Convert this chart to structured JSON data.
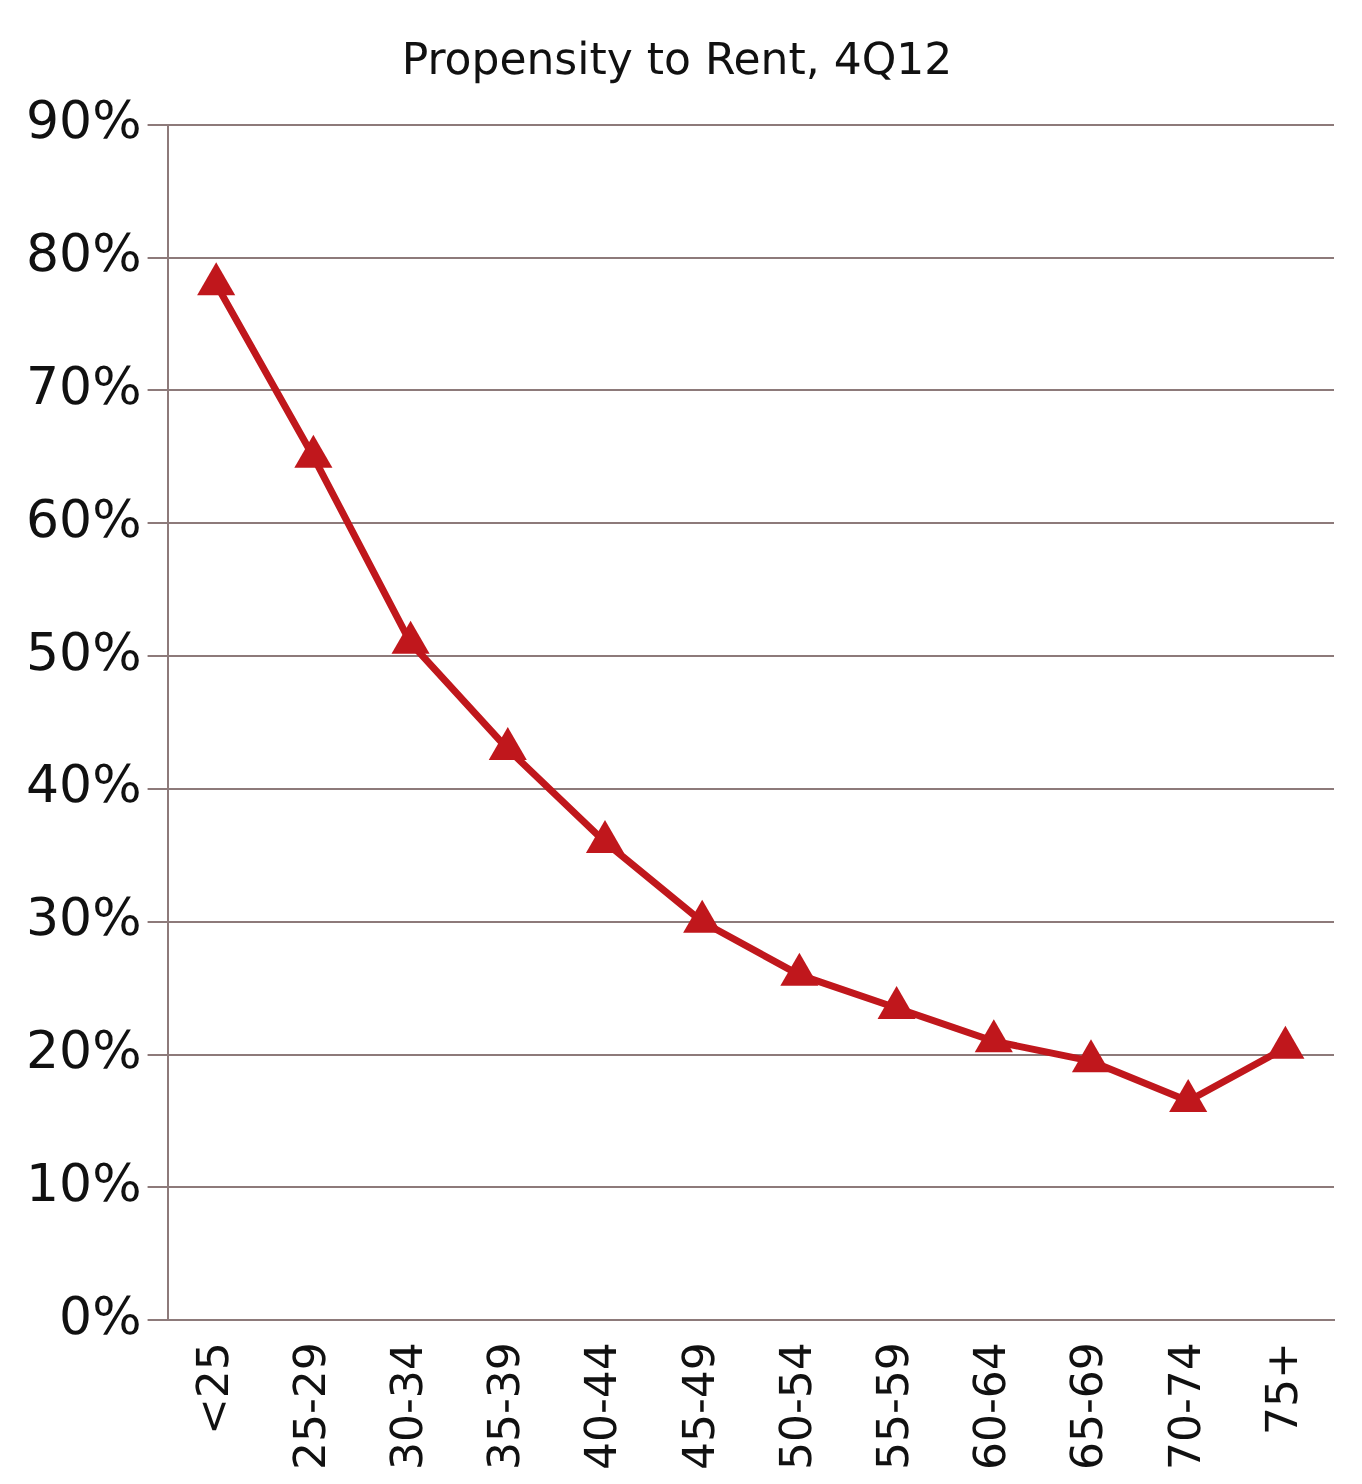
{
  "chart_data": {
    "type": "line",
    "title": "Propensity to Rent, 4Q12",
    "categories": [
      "<25",
      "25-29",
      "30-34",
      "35-39",
      "40-44",
      "45-49",
      "50-54",
      "55-59",
      "60-64",
      "65-69",
      "70-74",
      "75+"
    ],
    "series": [
      {
        "color": "#c0171c",
        "values": [
          78,
          65,
          51,
          43,
          36,
          30,
          26,
          23.5,
          21,
          19.5,
          16.5,
          20.5
        ]
      }
    ],
    "ylim": [
      0,
      90
    ],
    "yticks": [
      {
        "value": 0,
        "label": "0%"
      },
      {
        "value": 10,
        "label": "10%"
      },
      {
        "value": 20,
        "label": "20%"
      },
      {
        "value": 30,
        "label": "30%"
      },
      {
        "value": 40,
        "label": "40%"
      },
      {
        "value": 50,
        "label": "50%"
      },
      {
        "value": 60,
        "label": "60%"
      },
      {
        "value": 70,
        "label": "70%"
      },
      {
        "value": 80,
        "label": "80%"
      },
      {
        "value": 90,
        "label": "90%"
      }
    ],
    "grid": "y",
    "legend": false,
    "marker": "triangle",
    "line_style": "solid"
  }
}
